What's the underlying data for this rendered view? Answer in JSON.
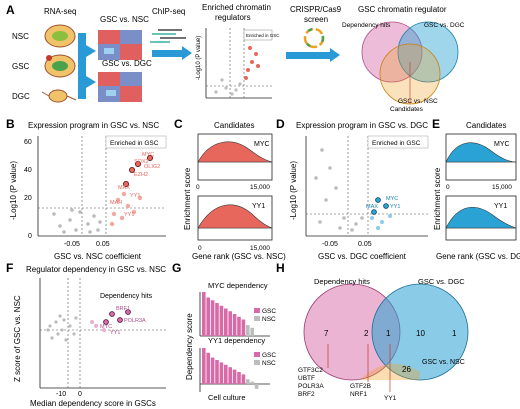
{
  "panel_letters": [
    "A",
    "B",
    "C",
    "D",
    "E",
    "F",
    "G",
    "H"
  ],
  "panel_a": {
    "rnaseq": "RNA-seq",
    "cells": [
      "NSC",
      "GSC",
      "DGC"
    ],
    "comparisons": [
      "GSC vs. NSC",
      "GSC vs. DGC"
    ],
    "chipseq": "ChIP-seq",
    "enriched_title": "Enriched chromatin regulators",
    "enriched_in": "Enriched in GSC",
    "ylabel": "-Log10 (P value)",
    "crispr_line1": "CRISPR/Cas9",
    "crispr_line2": "screen",
    "gsc_regulator": "GSC chromatin regulator",
    "venn_labels": [
      "Dependency hits",
      "GSC vs. DGC",
      "GSC vs. NSC",
      "Candidates"
    ]
  },
  "panel_b": {
    "title": "Expression program in GSC vs. NSC",
    "enriched": "Enriched in GSC",
    "xlabel": "GSC vs. NSC coefficient",
    "ylabel": "-Log10 (P value)",
    "yticks": [
      "60",
      "40",
      "20",
      "0"
    ],
    "xticks": [
      "-0.05",
      "0.05"
    ],
    "genes": [
      "MYC",
      "SOX2",
      "OLIG2",
      "EZH2",
      "MAX",
      "YY1",
      "MAH",
      "YY1"
    ]
  },
  "panel_c": {
    "title": "Candidates",
    "ylabel": "Enrichment score",
    "xlabel": "Gene rank (GSC vs. NSC)",
    "xticks": [
      "0",
      "15,000"
    ],
    "plots": [
      "MYC",
      "YY1"
    ]
  },
  "panel_d": {
    "title": "Expression program in GSC vs. DGC",
    "enriched": "Enriched in GSC",
    "xlabel": "GSC vs. DGC coefficient",
    "ylabel": "-Log10 (P value)",
    "xticks": [
      "-0.05",
      "0.05"
    ],
    "genes": [
      "MYC",
      "YY1",
      "MAX"
    ]
  },
  "panel_e": {
    "title": "Candidates",
    "ylabel": "Enrichment score",
    "xlabel": "Gene rank (GSC vs. DGC)",
    "xticks": [
      "0",
      "15,000"
    ],
    "plots": [
      "MYC",
      "YY1"
    ]
  },
  "panel_f": {
    "title": "Regulator dependency in GSC vs. NSC",
    "hits": "Dependency hits",
    "ylabel": "Z score of GSC vs. NSC",
    "xlabel": "Median dependency score in GSCs",
    "xticks": [
      "-10",
      "0"
    ],
    "genes": [
      "BRF1",
      "POLR3A",
      "MYC",
      "YY1"
    ]
  },
  "panel_g": {
    "ylabel": "Dependency score",
    "xlabel": "Cell culture",
    "charts": [
      {
        "title": "MYC dependency",
        "legend": [
          "GSC",
          "NSC"
        ]
      },
      {
        "title": "YY1 dependency",
        "legend": [
          "GSC",
          "NSC"
        ]
      }
    ]
  },
  "panel_h": {
    "labels": [
      "Dependency hits",
      "GSC vs. DGC",
      "GSC vs. NSC"
    ],
    "counts": [
      "7",
      "2",
      "1",
      "10",
      "1",
      "26"
    ],
    "genes_left": [
      "GTF3C2",
      "UBTF",
      "POLR3A",
      "BRF2"
    ],
    "genes_mid": [
      "GTF2B",
      "NRF1"
    ],
    "genes_right": [
      "YY1"
    ]
  },
  "colors": {
    "red": "#e8675d",
    "pink": "#d86aa8",
    "blue": "#2aa3d4",
    "gray": "#bdbdbd"
  },
  "chart_data": [
    {
      "type": "bar",
      "title": "MYC dependency",
      "ylabel": "Dependency score",
      "xlabel": "Cell culture",
      "series": [
        {
          "name": "GSC",
          "values": [
            16,
            14,
            13,
            12,
            11,
            10,
            9,
            8,
            7,
            6
          ]
        },
        {
          "name": "NSC",
          "values": [
            4,
            3
          ]
        }
      ]
    },
    {
      "type": "bar",
      "title": "YY1 dependency",
      "ylabel": "Dependency score",
      "xlabel": "Cell culture",
      "series": [
        {
          "name": "GSC",
          "values": [
            15,
            13,
            11,
            10,
            9,
            8,
            7,
            6,
            5,
            4
          ]
        },
        {
          "name": "NSC",
          "values": [
            2,
            1,
            -2
          ]
        }
      ]
    }
  ]
}
